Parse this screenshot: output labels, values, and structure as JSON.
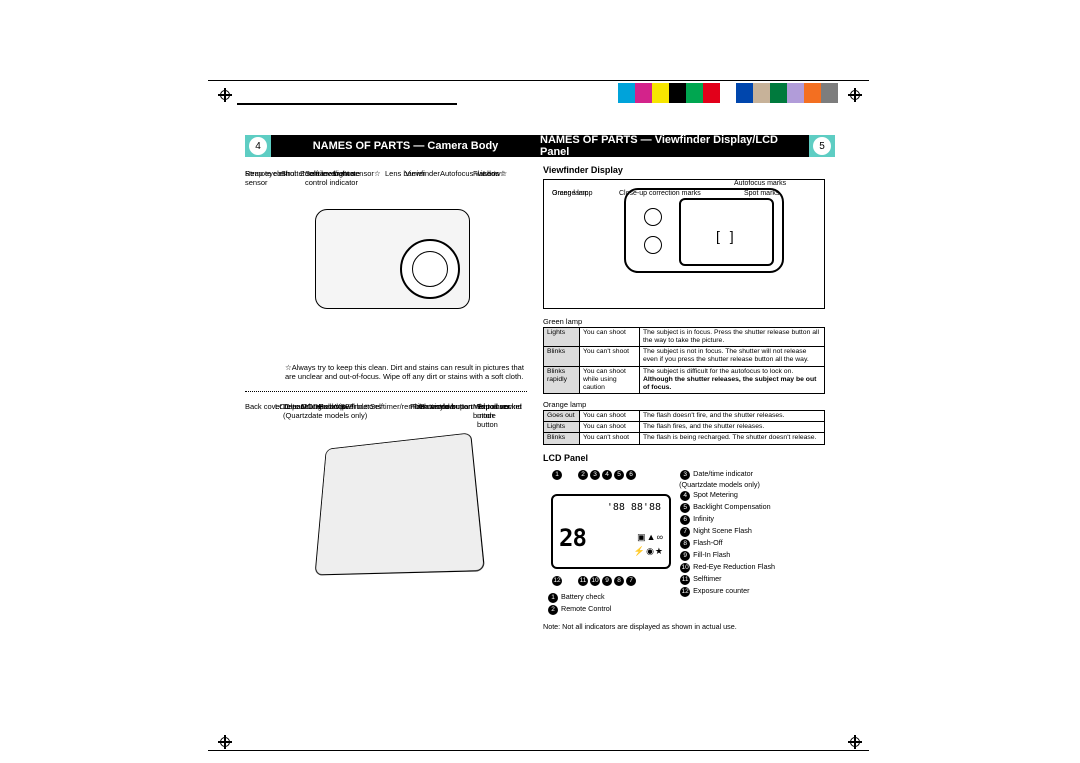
{
  "color_bar": [
    "#00a3da",
    "#d3238b",
    "#f7e600",
    "#000000",
    "#00a650",
    "#e2001a",
    "#ffffff",
    "#0046ad",
    "#c7b299",
    "#007a3d",
    "#b19cd9",
    "#f36f21",
    "#7d7d7d"
  ],
  "header": {
    "page_left": "4",
    "title_left": "NAMES OF PARTS — Camera Body",
    "title_right": "NAMES OF PARTS — Viewfinder Display/LCD Panel",
    "page_right": "5"
  },
  "camera_front_labels": {
    "light_sensor": "Light sensor☆",
    "viewfinder": "Viewfinder",
    "shutter": "Shutter release button",
    "autofocus": "Autofocus window☆",
    "zoom": "Zoom lever",
    "flash": "Flash☆",
    "strap": "Strap eyelet",
    "remote": "Remote control\nsensor",
    "lens": "Lens☆",
    "lens_barrier": "Lens barrier",
    "selftimer": "Selftimer/remote\ncontrol indicator"
  },
  "note": "☆Always try to keep this clean. Dirt and stains can result in pictures that are unclear and out-of-focus. Wipe off any dirt or stains with a soft cloth.",
  "camera_back_labels": {
    "date_mode": "Date MODE and SET buttons\n(Quartzdate models only)",
    "film_window": "Film window",
    "viewfinder": "Viewfinder",
    "battery_cover": "Battery compartment cover",
    "green_lamp": "Green lamp",
    "midroll": "Mid-roll rewind\nbutton",
    "orange_lamp": "Orange lamp",
    "lcd_panel": "LCD panel",
    "tripod": "Tripod socket",
    "exposure": "Exposure mode\nbutton",
    "back_cover_release": "Back cover release",
    "flash_mode": "Flash mode button",
    "back_cover": "Back cover",
    "selftimer_btn": "Selftimer/remote control button"
  },
  "right": {
    "viewfinder_title": "Viewfinder Display",
    "vf_labels": {
      "autofocus_marks": "Autofocus marks",
      "orange_lamp": "Orange lamp",
      "green_lamp": "Green lamp",
      "closeup": "Close-up correction marks",
      "spot": "Spot marks"
    },
    "green_table_caption": "Green lamp",
    "green_table": [
      {
        "state": "Lights",
        "action": "You can shoot",
        "desc": "The subject is in focus. Press the shutter release button all the way to take the picture."
      },
      {
        "state": "Blinks",
        "action": "You can't shoot",
        "desc": "The subject is not in focus. The shutter will not release even if you press the shutter release button all the way."
      },
      {
        "state": "Blinks rapidly",
        "action": "You can shoot while using caution",
        "desc": "The subject is difficult for the autofocus to lock on. Although the shutter releases, the subject may be out of focus.",
        "bold_part": "Although the shutter releases, the subject may be out of focus."
      }
    ],
    "orange_table_caption": "Orange lamp",
    "orange_table": [
      {
        "state": "Goes out",
        "action": "You can shoot",
        "desc": "The flash doesn't fire, and the shutter releases."
      },
      {
        "state": "Lights",
        "action": "You can shoot",
        "desc": "The flash fires, and the shutter releases."
      },
      {
        "state": "Blinks",
        "action": "You can't shoot",
        "desc": "The flash is being recharged. The shutter doesn't release."
      }
    ],
    "lcd_title": "LCD Panel",
    "lcd_display": {
      "digits": "28",
      "small": "'88 88'88"
    },
    "lcd_legend_left": [
      {
        "n": "1",
        "t": "Battery check"
      },
      {
        "n": "2",
        "t": "Remote Control"
      }
    ],
    "lcd_legend_right": [
      {
        "n": "3",
        "t": "Date/time indicator\n(Quartzdate models only)"
      },
      {
        "n": "4",
        "t": "Spot Metering"
      },
      {
        "n": "5",
        "t": "Backlight Compensation"
      },
      {
        "n": "6",
        "t": "Infinity"
      },
      {
        "n": "7",
        "t": "Night Scene Flash"
      },
      {
        "n": "8",
        "t": "Flash-Off"
      },
      {
        "n": "9",
        "t": "Fill-In Flash"
      },
      {
        "n": "10",
        "t": "Red-Eye Reduction Flash"
      },
      {
        "n": "11",
        "t": "Selftimer"
      },
      {
        "n": "12",
        "t": "Exposure counter"
      }
    ],
    "lcd_top_nums": [
      "1",
      "2",
      "3",
      "4",
      "5",
      "6"
    ],
    "lcd_bottom_nums": [
      "12",
      "11",
      "10",
      "9",
      "8",
      "7"
    ],
    "footnote": "Note: Not all indicators are displayed as shown in actual use."
  }
}
